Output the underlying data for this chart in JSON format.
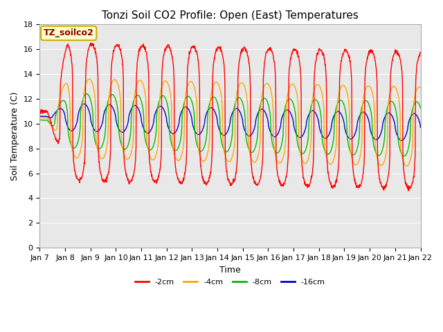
{
  "title": "Tonzi Soil CO2 Profile: Open (East) Temperatures",
  "xlabel": "Time",
  "ylabel": "Soil Temperature (C)",
  "legend_label": "TZ_soilco2",
  "series_labels": [
    "-2cm",
    "-4cm",
    "-8cm",
    "-16cm"
  ],
  "series_colors": [
    "#ff0000",
    "#ffa500",
    "#00bb00",
    "#0000cc"
  ],
  "ylim": [
    0,
    18
  ],
  "xtick_labels": [
    "Jan 7",
    "Jan 8",
    "Jan 9",
    "Jan 10",
    "Jan 11",
    "Jan 12",
    "Jan 13",
    "Jan 14",
    "Jan 15",
    "Jan 16",
    "Jan 17",
    "Jan 18",
    "Jan 19",
    "Jan 20",
    "Jan 21",
    "Jan 22"
  ],
  "background_color": "#ffffff",
  "plot_bg_color": "#e8e8e8",
  "grid_color": "#ffffff",
  "title_fontsize": 11,
  "axis_fontsize": 9,
  "tick_fontsize": 8,
  "legend_text_color": "#880000",
  "legend_bg_color": "#ffffcc",
  "legend_border_color": "#ccaa00",
  "figwidth": 6.4,
  "figheight": 4.8,
  "dpi": 100
}
